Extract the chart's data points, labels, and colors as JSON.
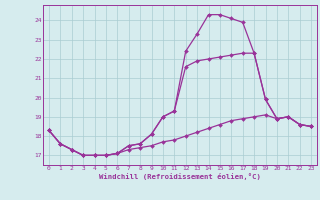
{
  "xlabel": "Windchill (Refroidissement éolien,°C)",
  "background_color": "#d6ecee",
  "grid_color": "#aacdd2",
  "line_color": "#993399",
  "markersize": 2.0,
  "linewidth": 0.9,
  "xlim": [
    -0.5,
    23.5
  ],
  "ylim": [
    16.5,
    24.8
  ],
  "yticks": [
    17,
    18,
    19,
    20,
    21,
    22,
    23,
    24
  ],
  "xticks": [
    0,
    1,
    2,
    3,
    4,
    5,
    6,
    7,
    8,
    9,
    10,
    11,
    12,
    13,
    14,
    15,
    16,
    17,
    18,
    19,
    20,
    21,
    22,
    23
  ],
  "series1": [
    [
      0,
      18.3
    ],
    [
      1,
      17.6
    ],
    [
      2,
      17.3
    ],
    [
      3,
      17.0
    ],
    [
      4,
      17.0
    ],
    [
      5,
      17.0
    ],
    [
      6,
      17.1
    ],
    [
      7,
      17.5
    ],
    [
      8,
      17.6
    ],
    [
      9,
      18.1
    ],
    [
      10,
      19.0
    ],
    [
      11,
      19.3
    ],
    [
      12,
      22.4
    ],
    [
      13,
      23.3
    ],
    [
      14,
      24.3
    ],
    [
      15,
      24.3
    ],
    [
      16,
      24.1
    ],
    [
      17,
      23.9
    ],
    [
      18,
      22.3
    ],
    [
      19,
      19.9
    ],
    [
      20,
      18.9
    ],
    [
      21,
      19.0
    ],
    [
      22,
      18.6
    ],
    [
      23,
      18.5
    ]
  ],
  "series2": [
    [
      0,
      18.3
    ],
    [
      1,
      17.6
    ],
    [
      2,
      17.3
    ],
    [
      3,
      17.0
    ],
    [
      4,
      17.0
    ],
    [
      5,
      17.0
    ],
    [
      6,
      17.1
    ],
    [
      7,
      17.5
    ],
    [
      8,
      17.6
    ],
    [
      9,
      18.1
    ],
    [
      10,
      19.0
    ],
    [
      11,
      19.3
    ],
    [
      12,
      21.6
    ],
    [
      13,
      21.9
    ],
    [
      14,
      22.0
    ],
    [
      15,
      22.1
    ],
    [
      16,
      22.2
    ],
    [
      17,
      22.3
    ],
    [
      18,
      22.3
    ],
    [
      19,
      19.9
    ],
    [
      20,
      18.9
    ],
    [
      21,
      19.0
    ],
    [
      22,
      18.6
    ],
    [
      23,
      18.5
    ]
  ],
  "series3": [
    [
      0,
      18.3
    ],
    [
      1,
      17.6
    ],
    [
      2,
      17.3
    ],
    [
      3,
      17.0
    ],
    [
      4,
      17.0
    ],
    [
      5,
      17.0
    ],
    [
      6,
      17.1
    ],
    [
      7,
      17.3
    ],
    [
      8,
      17.4
    ],
    [
      9,
      17.5
    ],
    [
      10,
      17.7
    ],
    [
      11,
      17.8
    ],
    [
      12,
      18.0
    ],
    [
      13,
      18.2
    ],
    [
      14,
      18.4
    ],
    [
      15,
      18.6
    ],
    [
      16,
      18.8
    ],
    [
      17,
      18.9
    ],
    [
      18,
      19.0
    ],
    [
      19,
      19.1
    ],
    [
      20,
      18.9
    ],
    [
      21,
      19.0
    ],
    [
      22,
      18.6
    ],
    [
      23,
      18.5
    ]
  ]
}
